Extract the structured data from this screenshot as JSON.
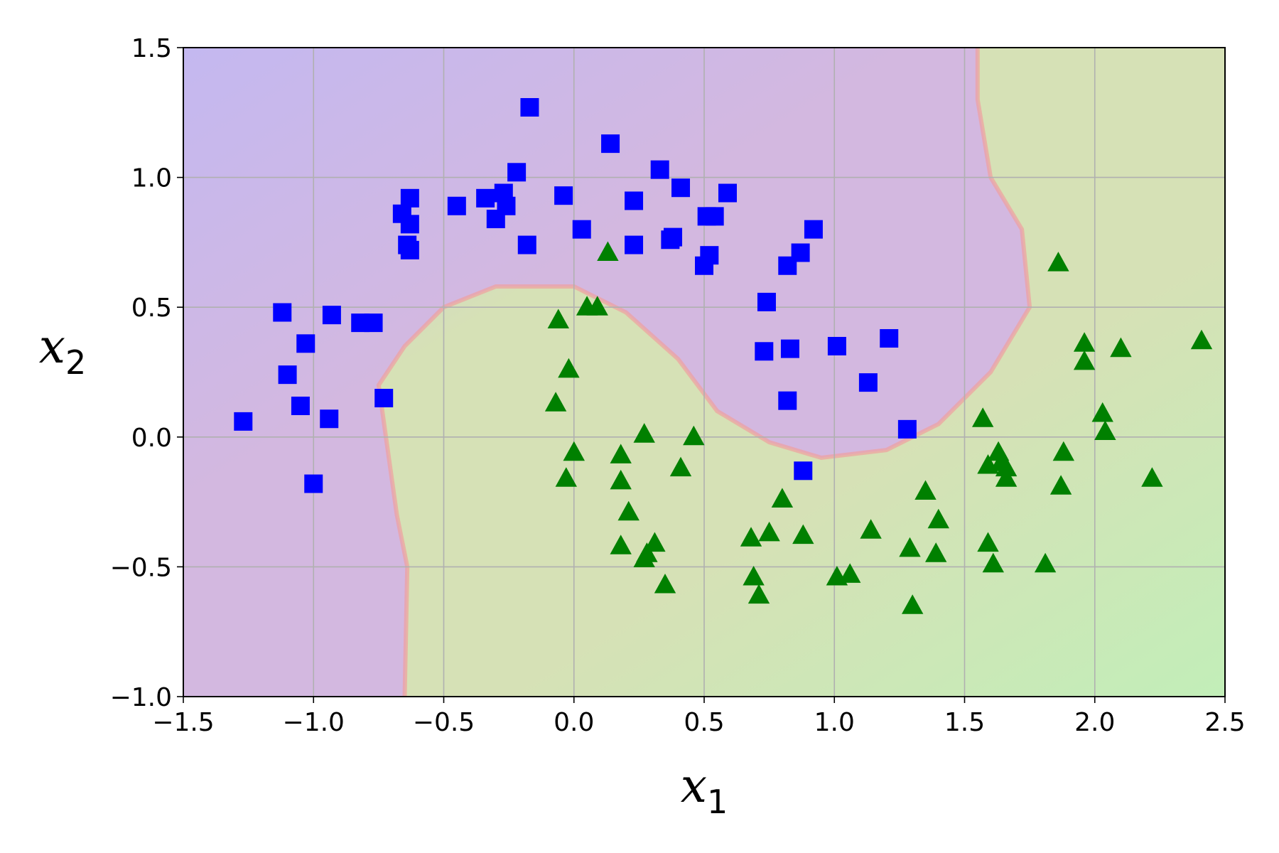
{
  "chart_data": {
    "type": "scatter",
    "xlim": [
      -1.5,
      2.5
    ],
    "ylim": [
      -1.0,
      1.5
    ],
    "xlabel": "x",
    "xlabel_sub": "1",
    "ylabel": "x",
    "ylabel_sub": "2",
    "grid": true,
    "x_ticks": [
      -1.5,
      -1.0,
      -0.5,
      0.0,
      0.5,
      1.0,
      1.5,
      2.0,
      2.5
    ],
    "x_tick_labels": [
      "−1.5",
      "−1.0",
      "−0.5",
      "0.0",
      "0.5",
      "1.0",
      "1.5",
      "2.0",
      "2.5"
    ],
    "y_ticks": [
      -1.0,
      -0.5,
      0.0,
      0.5,
      1.0,
      1.5
    ],
    "y_tick_labels": [
      "−1.0",
      "−0.5",
      "0.0",
      "0.5",
      "1.0",
      "1.5"
    ],
    "background_regions": {
      "class0_color": "#d3b8e0",
      "class1_color": "#d6e1b6",
      "corner_blue": "#c4b8f0",
      "corner_green": "#c2eeb8",
      "boundary_color": "#f0a0a0",
      "boundary": [
        [
          -0.65,
          -1.0
        ],
        [
          -0.64,
          -0.5
        ],
        [
          -0.68,
          -0.3
        ],
        [
          -0.75,
          0.2
        ],
        [
          -0.65,
          0.35
        ],
        [
          -0.5,
          0.5
        ],
        [
          -0.3,
          0.58
        ],
        [
          0.0,
          0.58
        ],
        [
          0.2,
          0.48
        ],
        [
          0.4,
          0.3
        ],
        [
          0.55,
          0.1
        ],
        [
          0.75,
          -0.02
        ],
        [
          0.95,
          -0.08
        ],
        [
          1.2,
          -0.05
        ],
        [
          1.4,
          0.05
        ],
        [
          1.6,
          0.25
        ],
        [
          1.75,
          0.5
        ],
        [
          1.72,
          0.8
        ],
        [
          1.6,
          1.0
        ],
        [
          1.55,
          1.3
        ],
        [
          1.55,
          1.5
        ]
      ]
    },
    "series": [
      {
        "marker": "square",
        "color": "#0000ff",
        "points": [
          [
            -0.17,
            1.27
          ],
          [
            0.14,
            1.13
          ],
          [
            0.33,
            1.03
          ],
          [
            0.41,
            0.96
          ],
          [
            0.59,
            0.94
          ],
          [
            -0.22,
            1.02
          ],
          [
            -0.04,
            0.93
          ],
          [
            0.23,
            0.91
          ],
          [
            -0.34,
            0.92
          ],
          [
            -0.27,
            0.94
          ],
          [
            -0.26,
            0.89
          ],
          [
            -0.3,
            0.84
          ],
          [
            -0.63,
            0.92
          ],
          [
            -0.66,
            0.86
          ],
          [
            -0.63,
            0.82
          ],
          [
            -0.45,
            0.89
          ],
          [
            0.03,
            0.8
          ],
          [
            0.51,
            0.85
          ],
          [
            0.54,
            0.85
          ],
          [
            0.37,
            0.76
          ],
          [
            0.38,
            0.77
          ],
          [
            0.23,
            0.74
          ],
          [
            -0.18,
            0.74
          ],
          [
            -0.64,
            0.74
          ],
          [
            -0.63,
            0.72
          ],
          [
            0.92,
            0.8
          ],
          [
            0.87,
            0.71
          ],
          [
            0.82,
            0.66
          ],
          [
            0.52,
            0.7
          ],
          [
            0.5,
            0.66
          ],
          [
            0.74,
            0.52
          ],
          [
            -1.12,
            0.48
          ],
          [
            -0.93,
            0.47
          ],
          [
            -0.82,
            0.44
          ],
          [
            -0.77,
            0.44
          ],
          [
            -1.03,
            0.36
          ],
          [
            -1.1,
            0.24
          ],
          [
            -0.73,
            0.15
          ],
          [
            -1.05,
            0.12
          ],
          [
            -1.27,
            0.06
          ],
          [
            -0.94,
            0.07
          ],
          [
            -1.0,
            -0.18
          ],
          [
            0.73,
            0.33
          ],
          [
            0.83,
            0.34
          ],
          [
            1.01,
            0.35
          ],
          [
            1.21,
            0.38
          ],
          [
            1.13,
            0.21
          ],
          [
            0.82,
            0.14
          ],
          [
            1.28,
            0.03
          ],
          [
            0.88,
            -0.13
          ]
        ]
      },
      {
        "marker": "triangle",
        "color": "#008000",
        "points": [
          [
            0.13,
            0.71
          ],
          [
            1.86,
            0.67
          ],
          [
            0.05,
            0.5
          ],
          [
            0.09,
            0.5
          ],
          [
            -0.06,
            0.45
          ],
          [
            -0.02,
            0.26
          ],
          [
            -0.07,
            0.13
          ],
          [
            0.0,
            -0.06
          ],
          [
            -0.03,
            -0.16
          ],
          [
            0.18,
            -0.07
          ],
          [
            0.27,
            0.01
          ],
          [
            0.46,
            0.0
          ],
          [
            0.41,
            -0.12
          ],
          [
            0.18,
            -0.17
          ],
          [
            0.21,
            -0.29
          ],
          [
            0.18,
            -0.42
          ],
          [
            0.31,
            -0.41
          ],
          [
            0.28,
            -0.45
          ],
          [
            0.27,
            -0.47
          ],
          [
            0.35,
            -0.57
          ],
          [
            0.8,
            -0.24
          ],
          [
            0.75,
            -0.37
          ],
          [
            0.68,
            -0.39
          ],
          [
            0.69,
            -0.54
          ],
          [
            0.71,
            -0.61
          ],
          [
            0.88,
            -0.38
          ],
          [
            1.01,
            -0.54
          ],
          [
            1.06,
            -0.53
          ],
          [
            1.14,
            -0.36
          ],
          [
            1.29,
            -0.43
          ],
          [
            1.3,
            -0.65
          ],
          [
            1.35,
            -0.21
          ],
          [
            1.4,
            -0.32
          ],
          [
            1.39,
            -0.45
          ],
          [
            1.57,
            0.07
          ],
          [
            1.59,
            -0.11
          ],
          [
            1.63,
            -0.06
          ],
          [
            1.64,
            -0.1
          ],
          [
            1.66,
            -0.12
          ],
          [
            1.66,
            -0.16
          ],
          [
            1.59,
            -0.41
          ],
          [
            1.61,
            -0.49
          ],
          [
            1.81,
            -0.49
          ],
          [
            1.87,
            -0.19
          ],
          [
            1.88,
            -0.06
          ],
          [
            1.96,
            0.36
          ],
          [
            1.96,
            0.29
          ],
          [
            2.1,
            0.34
          ],
          [
            2.03,
            0.09
          ],
          [
            2.04,
            0.02
          ],
          [
            2.22,
            -0.16
          ],
          [
            2.41,
            0.37
          ]
        ]
      }
    ]
  }
}
